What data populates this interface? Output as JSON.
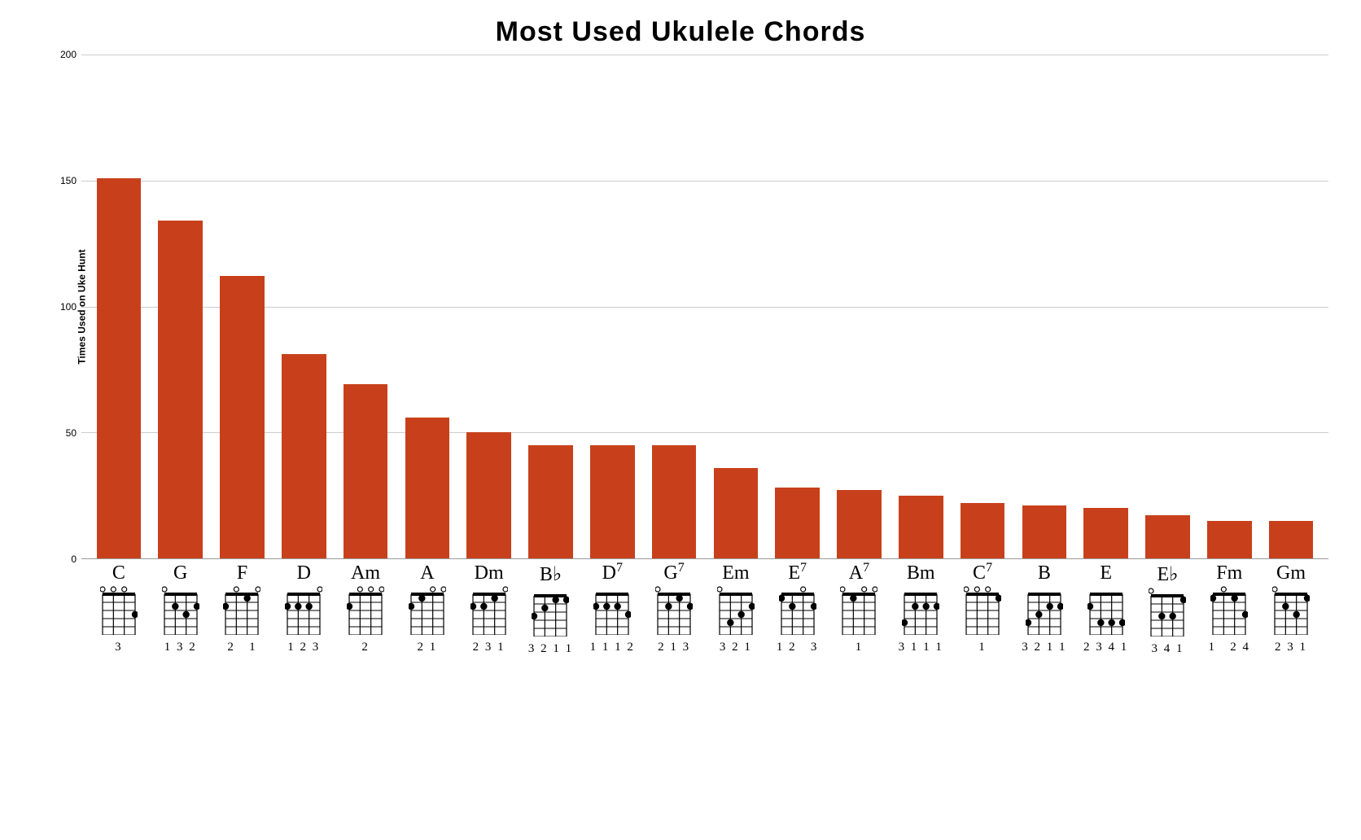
{
  "title": "Most Used Ukulele Chords",
  "y_label": "Times Used on Uke Hunt",
  "y": {
    "min": 0,
    "max": 200,
    "ticks": [
      0,
      50,
      100,
      150,
      200
    ],
    "grid_color": "#cccccc"
  },
  "bar_color": "#c8401b",
  "background_color": "#ffffff",
  "chords": [
    {
      "name": "C",
      "value": 151,
      "open": [
        1,
        1,
        1,
        0
      ],
      "dots": [
        [
          0,
          0,
          0,
          3
        ]
      ],
      "fingering": "3"
    },
    {
      "name": "G",
      "value": 134,
      "open": [
        1,
        0,
        0,
        0
      ],
      "dots": [
        [
          0,
          2,
          3,
          2
        ]
      ],
      "fingering": "1 3 2"
    },
    {
      "name": "F",
      "value": 112,
      "open": [
        0,
        1,
        0,
        1
      ],
      "dots": [
        [
          2,
          0,
          1,
          0
        ]
      ],
      "fingering": "2   1"
    },
    {
      "name": "D",
      "value": 81,
      "open": [
        0,
        0,
        0,
        1
      ],
      "dots": [
        [
          2,
          2,
          2,
          0
        ]
      ],
      "fingering": "1 2 3"
    },
    {
      "name": "Am",
      "value": 69,
      "open": [
        0,
        1,
        1,
        1
      ],
      "dots": [
        [
          2,
          0,
          0,
          0
        ]
      ],
      "fingering": "2"
    },
    {
      "name": "A",
      "value": 56,
      "open": [
        0,
        0,
        1,
        1
      ],
      "dots": [
        [
          2,
          1,
          0,
          0
        ]
      ],
      "fingering": "2 1"
    },
    {
      "name": "Dm",
      "value": 50,
      "open": [
        0,
        0,
        0,
        1
      ],
      "dots": [
        [
          2,
          2,
          1,
          0
        ]
      ],
      "fingering": "2 3 1"
    },
    {
      "name": "B♭",
      "value": 45,
      "open": [
        0,
        0,
        0,
        0
      ],
      "dots": [
        [
          3,
          2,
          1,
          1
        ]
      ],
      "fingering": "3 2 1 1"
    },
    {
      "name": "D7",
      "sup": "7",
      "base": "D",
      "value": 45,
      "open": [
        0,
        0,
        0,
        0
      ],
      "dots": [
        [
          2,
          2,
          2,
          3
        ]
      ],
      "fingering": "1 1 1 2"
    },
    {
      "name": "G7",
      "sup": "7",
      "base": "G",
      "value": 45,
      "open": [
        1,
        0,
        0,
        0
      ],
      "dots": [
        [
          0,
          2,
          1,
          2
        ]
      ],
      "fingering": "2 1 3"
    },
    {
      "name": "Em",
      "value": 36,
      "open": [
        1,
        0,
        0,
        0
      ],
      "dots": [
        [
          0,
          4,
          3,
          2
        ]
      ],
      "fingering": "3 2 1"
    },
    {
      "name": "E7",
      "sup": "7",
      "base": "E",
      "value": 28,
      "open": [
        0,
        0,
        1,
        0
      ],
      "dots": [
        [
          1,
          2,
          0,
          2
        ]
      ],
      "fingering": "1 2   3"
    },
    {
      "name": "A7",
      "sup": "7",
      "base": "A",
      "value": 27,
      "open": [
        1,
        0,
        1,
        1
      ],
      "dots": [
        [
          0,
          1,
          0,
          0
        ]
      ],
      "fingering": "1"
    },
    {
      "name": "Bm",
      "value": 25,
      "open": [
        0,
        0,
        0,
        0
      ],
      "dots": [
        [
          4,
          2,
          2,
          2
        ]
      ],
      "fingering": "3 1 1 1"
    },
    {
      "name": "C7",
      "sup": "7",
      "base": "C",
      "value": 22,
      "open": [
        1,
        1,
        1,
        0
      ],
      "dots": [
        [
          0,
          0,
          0,
          1
        ]
      ],
      "fingering": "1"
    },
    {
      "name": "B",
      "value": 21,
      "open": [
        0,
        0,
        0,
        0
      ],
      "dots": [
        [
          4,
          3,
          2,
          2
        ]
      ],
      "fingering": "3 2 1 1"
    },
    {
      "name": "E",
      "value": 20,
      "open": [
        0,
        0,
        0,
        0
      ],
      "dots": [
        [
          2,
          4,
          4,
          4
        ]
      ],
      "fingering": "2 3 4 1"
    },
    {
      "name": "E♭",
      "value": 17,
      "open": [
        1,
        0,
        0,
        0
      ],
      "dots": [
        [
          0,
          3,
          3,
          1
        ]
      ],
      "fingering": "3 4 1"
    },
    {
      "name": "Fm",
      "value": 15,
      "open": [
        0,
        1,
        0,
        0
      ],
      "dots": [
        [
          1,
          0,
          1,
          3
        ]
      ],
      "fingering": "1   2 4"
    },
    {
      "name": "Gm",
      "value": 15,
      "open": [
        1,
        0,
        0,
        0
      ],
      "dots": [
        [
          0,
          2,
          3,
          1
        ]
      ],
      "fingering": "2 3 1"
    }
  ],
  "diagram": {
    "width": 46,
    "height": 60,
    "frets": 5,
    "line_color": "#000000",
    "dot_color": "#000000",
    "open_stroke": "#000000"
  }
}
